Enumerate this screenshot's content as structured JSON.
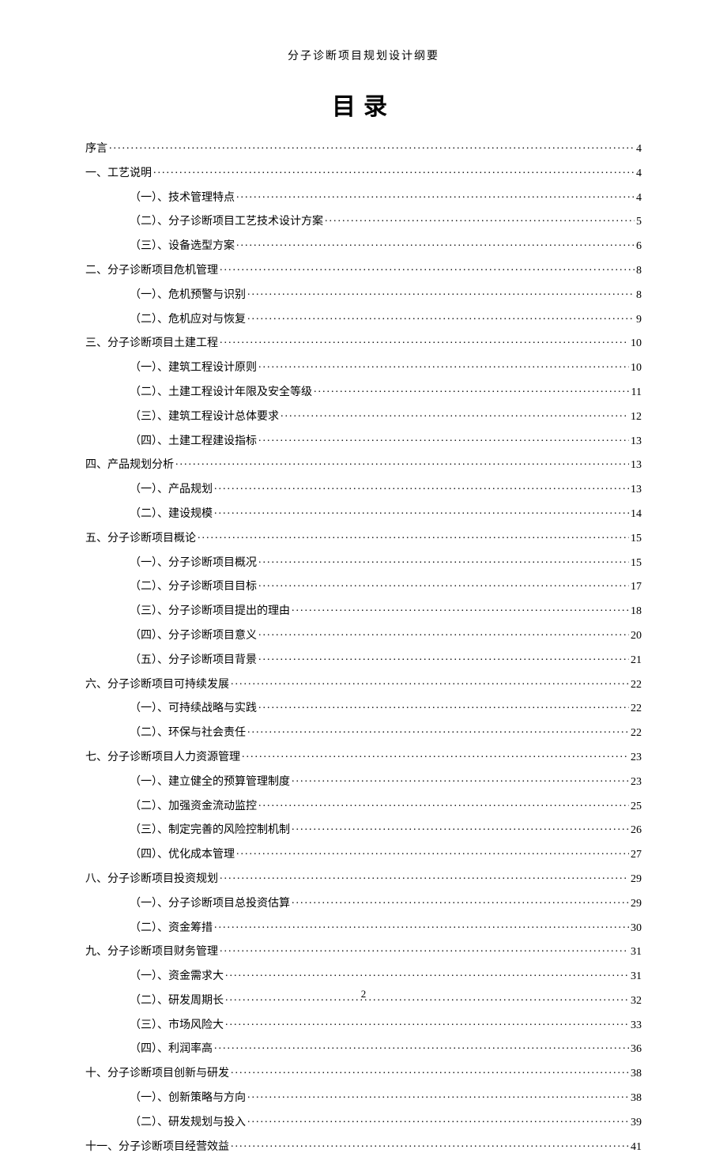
{
  "header_title": "分子诊断项目规划设计纲要",
  "main_title": "目录",
  "page_number": "2",
  "toc": [
    {
      "level": 1,
      "label": "序言",
      "page": "4"
    },
    {
      "level": 1,
      "label": "一、工艺说明",
      "page": "4"
    },
    {
      "level": 2,
      "label": "（一）、技术管理特点",
      "page": "4"
    },
    {
      "level": 2,
      "label": "（二）、分子诊断项目工艺技术设计方案",
      "page": "5"
    },
    {
      "level": 2,
      "label": "（三）、设备选型方案",
      "page": "6"
    },
    {
      "level": 1,
      "label": "二、分子诊断项目危机管理",
      "page": "8"
    },
    {
      "level": 2,
      "label": "（一）、危机预警与识别",
      "page": "8"
    },
    {
      "level": 2,
      "label": "（二）、危机应对与恢复",
      "page": "9"
    },
    {
      "level": 1,
      "label": "三、分子诊断项目土建工程",
      "page": "10"
    },
    {
      "level": 2,
      "label": "（一）、建筑工程设计原则",
      "page": "10"
    },
    {
      "level": 2,
      "label": "（二）、土建工程设计年限及安全等级",
      "page": "11"
    },
    {
      "level": 2,
      "label": "（三）、建筑工程设计总体要求",
      "page": "12"
    },
    {
      "level": 2,
      "label": "（四）、土建工程建设指标",
      "page": "13"
    },
    {
      "level": 1,
      "label": "四、产品规划分析",
      "page": "13"
    },
    {
      "level": 2,
      "label": "（一）、产品规划",
      "page": "13"
    },
    {
      "level": 2,
      "label": "（二）、建设规模",
      "page": "14"
    },
    {
      "level": 1,
      "label": "五、分子诊断项目概论",
      "page": "15"
    },
    {
      "level": 2,
      "label": "（一）、分子诊断项目概况",
      "page": "15"
    },
    {
      "level": 2,
      "label": "（二）、分子诊断项目目标",
      "page": "17"
    },
    {
      "level": 2,
      "label": "（三）、分子诊断项目提出的理由",
      "page": "18"
    },
    {
      "level": 2,
      "label": "（四）、分子诊断项目意义",
      "page": "20"
    },
    {
      "level": 2,
      "label": "（五）、分子诊断项目背景",
      "page": "21"
    },
    {
      "level": 1,
      "label": "六、分子诊断项目可持续发展",
      "page": "22"
    },
    {
      "level": 2,
      "label": "（一）、可持续战略与实践",
      "page": "22"
    },
    {
      "level": 2,
      "label": "（二）、环保与社会责任",
      "page": "22"
    },
    {
      "level": 1,
      "label": "七、分子诊断项目人力资源管理",
      "page": "23"
    },
    {
      "level": 2,
      "label": "（一）、建立健全的预算管理制度",
      "page": "23"
    },
    {
      "level": 2,
      "label": "（二）、加强资金流动监控",
      "page": "25"
    },
    {
      "level": 2,
      "label": "（三）、制定完善的风险控制机制",
      "page": "26"
    },
    {
      "level": 2,
      "label": "（四）、优化成本管理",
      "page": "27"
    },
    {
      "level": 1,
      "label": "八、分子诊断项目投资规划",
      "page": "29"
    },
    {
      "level": 2,
      "label": "（一）、分子诊断项目总投资估算",
      "page": "29"
    },
    {
      "level": 2,
      "label": "（二）、资金筹措",
      "page": "30"
    },
    {
      "level": 1,
      "label": "九、分子诊断项目财务管理",
      "page": "31"
    },
    {
      "level": 2,
      "label": "（一）、资金需求大",
      "page": "31"
    },
    {
      "level": 2,
      "label": "（二）、研发周期长",
      "page": "32"
    },
    {
      "level": 2,
      "label": "（三）、市场风险大",
      "page": "33"
    },
    {
      "level": 2,
      "label": "（四）、利润率高",
      "page": "36"
    },
    {
      "level": 1,
      "label": "十、分子诊断项目创新与研发",
      "page": "38"
    },
    {
      "level": 2,
      "label": "（一）、创新策略与方向",
      "page": "38"
    },
    {
      "level": 2,
      "label": "（二）、研发规划与投入",
      "page": "39"
    },
    {
      "level": 1,
      "label": "十一、分子诊断项目经营效益",
      "page": "41"
    }
  ]
}
